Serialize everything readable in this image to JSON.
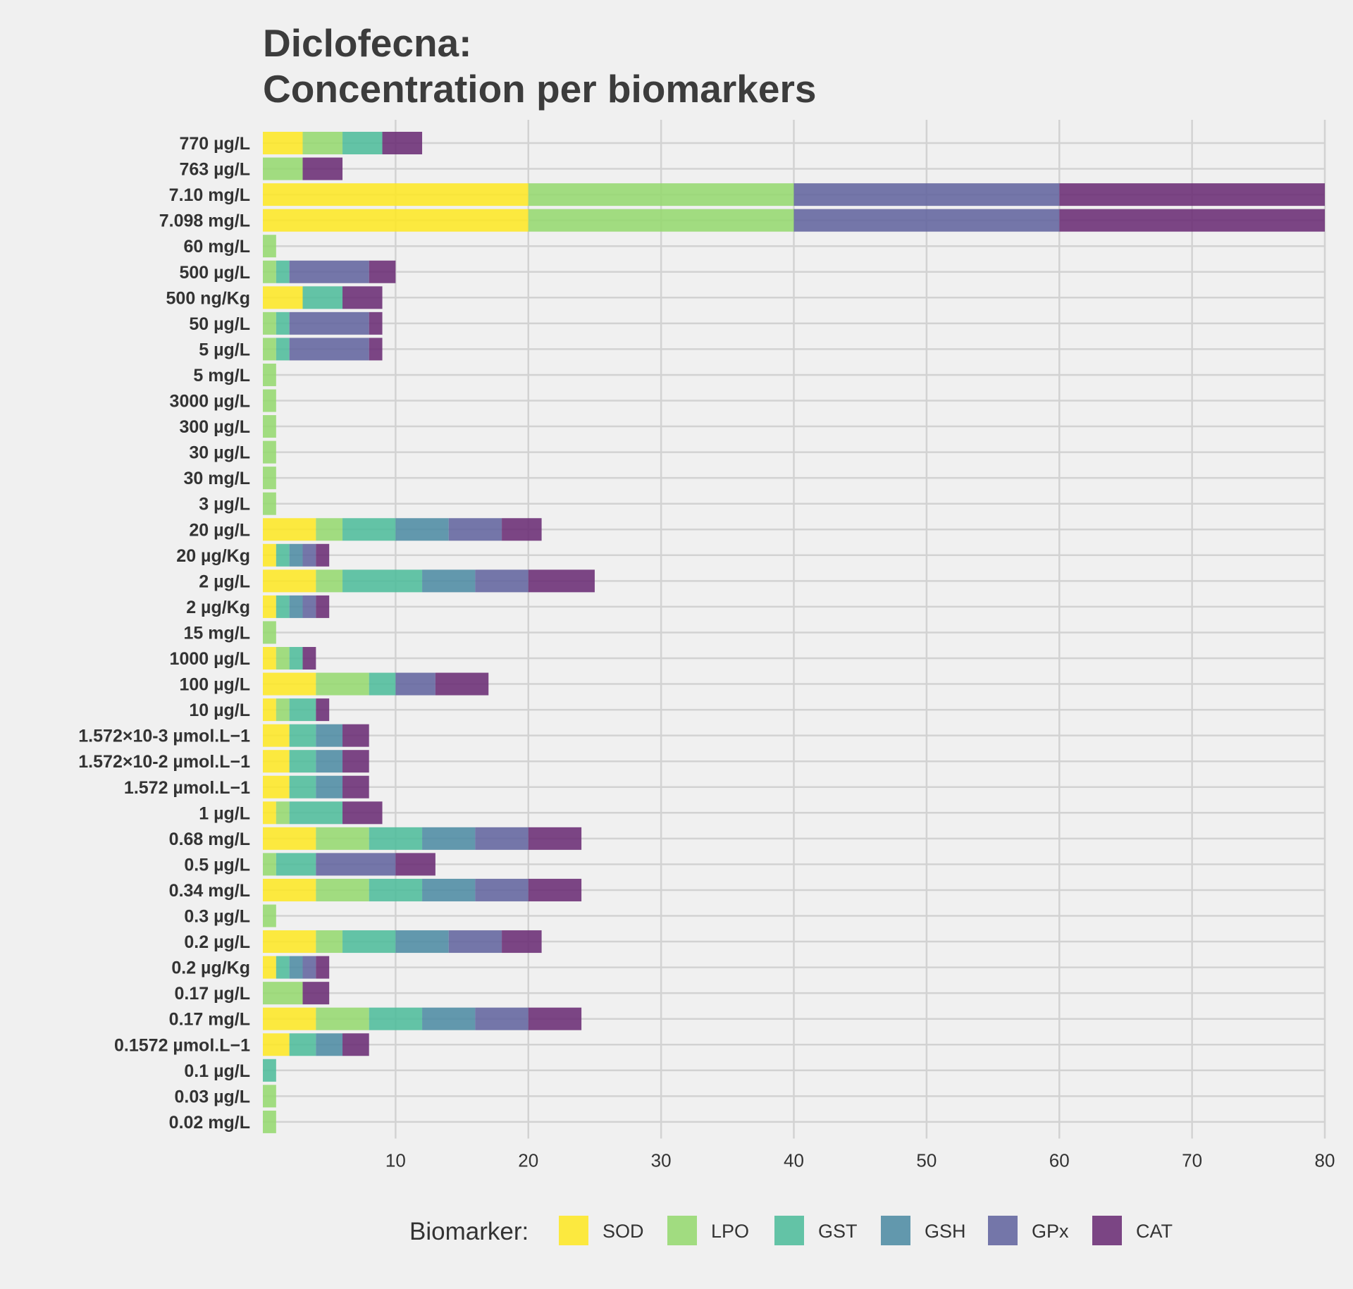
{
  "chart_data": {
    "type": "bar",
    "orientation": "horizontal",
    "stacked": true,
    "title": [
      "Diclofecna:",
      "Concentration per biomarkers"
    ],
    "xlabel": "",
    "ylabel": "",
    "xlim": [
      0,
      80
    ],
    "x_ticks": [
      10,
      20,
      30,
      40,
      50,
      60,
      70,
      80
    ],
    "grid": true,
    "legend_position": "bottom",
    "legend_title": "Biomarker:",
    "categories": [
      "770 µg/L",
      "763 µg/L",
      "7.10 mg/L",
      "7.098 mg/L",
      "60 mg/L",
      "500 µg/L",
      "500 ng/Kg",
      "50 µg/L",
      "5 µg/L",
      "5 mg/L",
      "3000 µg/L",
      "300 µg/L",
      "30 µg/L",
      "30 mg/L",
      "3 µg/L",
      "20 µg/L",
      "20 µg/Kg",
      "2 µg/L",
      "2 µg/Kg",
      "15 mg/L",
      "1000 µg/L",
      "100 µg/L",
      "10 µg/L",
      "1.572×10-3 µmol.L−1",
      "1.572×10-2 µmol.L−1",
      "1.572 µmol.L−1",
      "1 µg/L",
      "0.68 mg/L",
      "0.5 µg/L",
      "0.34 mg/L",
      "0.3 µg/L",
      "0.2 µg/L",
      "0.2 µg/Kg",
      "0.17 µg/L",
      "0.17 mg/L",
      "0.1572 µmol.L−1",
      "0.1 µg/L",
      "0.03 µg/L",
      "0.02 mg/L"
    ],
    "series": [
      {
        "name": "SOD",
        "color": "#fde725",
        "values": [
          3,
          0,
          20,
          20,
          0,
          0,
          3,
          0,
          0,
          0,
          0,
          0,
          0,
          0,
          0,
          4,
          1,
          4,
          1,
          0,
          1,
          4,
          1,
          2,
          2,
          2,
          1,
          4,
          0,
          4,
          0,
          4,
          1,
          0,
          4,
          2,
          0,
          0,
          0
        ]
      },
      {
        "name": "LPO",
        "color": "#95d870",
        "values": [
          3,
          3,
          20,
          20,
          1,
          1,
          0,
          1,
          1,
          1,
          1,
          1,
          1,
          1,
          1,
          2,
          0,
          2,
          0,
          1,
          1,
          4,
          1,
          0,
          0,
          0,
          1,
          4,
          1,
          4,
          1,
          2,
          0,
          3,
          4,
          0,
          0,
          1,
          1
        ]
      },
      {
        "name": "GST",
        "color": "#4fbc9b",
        "values": [
          3,
          0,
          0,
          0,
          0,
          1,
          3,
          1,
          1,
          0,
          0,
          0,
          0,
          0,
          0,
          4,
          1,
          6,
          1,
          0,
          1,
          2,
          2,
          2,
          2,
          2,
          4,
          4,
          3,
          4,
          0,
          4,
          1,
          0,
          4,
          2,
          1,
          0,
          0
        ]
      },
      {
        "name": "GSH",
        "color": "#4d8ba3",
        "values": [
          0,
          0,
          0,
          0,
          0,
          0,
          0,
          0,
          0,
          0,
          0,
          0,
          0,
          0,
          0,
          4,
          1,
          4,
          1,
          0,
          0,
          0,
          0,
          2,
          2,
          2,
          0,
          4,
          0,
          4,
          0,
          4,
          1,
          0,
          4,
          2,
          0,
          0,
          0
        ]
      },
      {
        "name": "GPx",
        "color": "#62649e",
        "values": [
          0,
          0,
          20,
          20,
          0,
          6,
          0,
          6,
          6,
          0,
          0,
          0,
          0,
          0,
          0,
          4,
          1,
          4,
          1,
          0,
          0,
          3,
          0,
          0,
          0,
          0,
          0,
          4,
          6,
          4,
          0,
          4,
          1,
          0,
          4,
          0,
          0,
          0,
          0
        ]
      },
      {
        "name": "CAT",
        "color": "#6a2c74",
        "values": [
          3,
          3,
          20,
          20,
          0,
          2,
          3,
          1,
          1,
          0,
          0,
          0,
          0,
          0,
          0,
          3,
          1,
          5,
          1,
          0,
          1,
          4,
          1,
          2,
          2,
          2,
          3,
          4,
          3,
          4,
          0,
          3,
          1,
          2,
          4,
          2,
          0,
          0,
          0
        ]
      }
    ]
  }
}
